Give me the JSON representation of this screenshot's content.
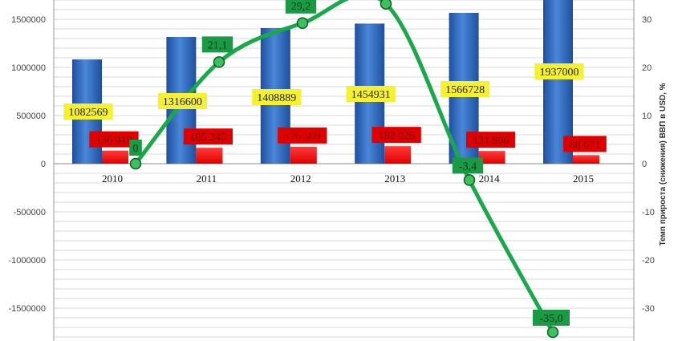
{
  "chart_data": {
    "type": "bar+line",
    "categories": [
      "2010",
      "2011",
      "2012",
      "2013",
      "2014",
      "2015"
    ],
    "series": [
      {
        "type": "bar",
        "axis": "left",
        "color": "#2f63b8",
        "label_bg": "#f5f032",
        "values": [
          1082569,
          1316600,
          1408889,
          1454931,
          1566728,
          1937000
        ],
        "labels": [
          "1082569",
          "1316600",
          "1408889",
          "1454931",
          "1566728",
          "1937000"
        ]
      },
      {
        "type": "bar",
        "axis": "left",
        "color": "#f01010",
        "label_bg": "#e00000",
        "values": [
          136419,
          165245,
          176309,
          182026,
          131806,
          88671
        ],
        "labels": [
          "136 419",
          "165 245",
          "176 309",
          "182 026",
          "131 806",
          "88 671"
        ]
      },
      {
        "type": "line",
        "axis": "right",
        "color": "#1aa84a",
        "label_bg": "#1a9a45",
        "values": [
          0,
          21.1,
          29.2,
          33.2,
          -3.4,
          -35.0
        ],
        "labels": [
          "0",
          "21,1",
          "29,2",
          null,
          "-3,4",
          "-35,0"
        ]
      }
    ],
    "left_axis": {
      "ylim": [
        -1800000,
        1700000
      ],
      "ticks": [
        "1500000",
        "1000000",
        "500000",
        "0",
        "-500000",
        "-1000000",
        "-1500000"
      ],
      "tick_values": [
        1500000,
        1000000,
        500000,
        0,
        -500000,
        -1000000,
        -1500000
      ]
    },
    "right_axis": {
      "label": "Темп прироста (снижения) ВВП в USD, %",
      "ylim": [
        -36,
        34
      ],
      "ticks": [
        "30",
        "20",
        "10",
        "0",
        "-10",
        "-20",
        "-30"
      ],
      "tick_values": [
        30,
        20,
        10,
        0,
        -10,
        -20,
        -30
      ]
    },
    "grid": true
  }
}
